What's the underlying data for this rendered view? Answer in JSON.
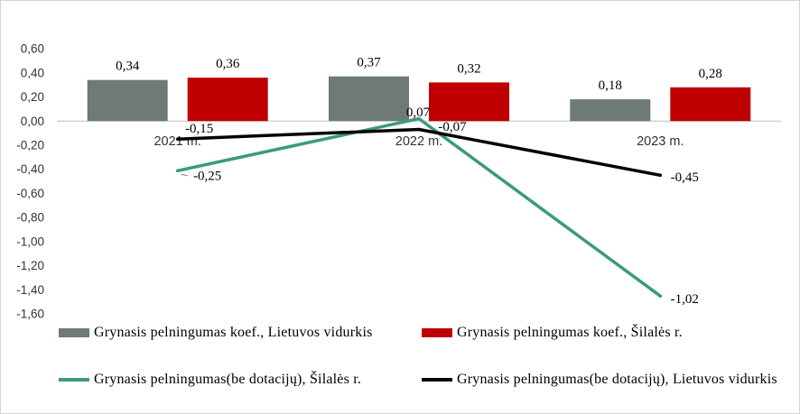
{
  "chart_data": {
    "type": "bar",
    "categories": [
      "2021 m.",
      "2022 m.",
      "2023 m."
    ],
    "ylim": [
      -1.6,
      0.6
    ],
    "ytick_labels": [
      "0,60",
      "0,40",
      "0,20",
      "0,00",
      "-0,20",
      "-0,40",
      "-0,60",
      "-0,80",
      "-1,00",
      "-1,20",
      "-1,40",
      "-1,60"
    ],
    "y2lim": [
      -1.13,
      0.5
    ],
    "grid": false,
    "legend": "bottom",
    "series": [
      {
        "name": "Grynasis pelningumas koef., Lietuvos vidurkis",
        "type": "bar",
        "color": "#6e7a74",
        "values": [
          0.34,
          0.37,
          0.18
        ],
        "labels": [
          "0,34",
          "0,37",
          "0,18"
        ]
      },
      {
        "name": "Grynasis pelningumas koef., Šilalės r.",
        "type": "bar",
        "color": "#c00000",
        "values": [
          0.36,
          0.32,
          0.28
        ],
        "labels": [
          "0,36",
          "0,32",
          "0,28"
        ]
      },
      {
        "name": "Grynasis pelningumas(be dotacijų), Šilalės r.",
        "type": "line",
        "axis": "secondary",
        "color": "#3b9b78",
        "values": [
          -0.25,
          0.07,
          -1.02
        ],
        "labels": [
          "-0,25",
          "0,07",
          "-1,02"
        ]
      },
      {
        "name": "Grynasis pelningumas(be dotacijų), Lietuvos vidurkis",
        "type": "line",
        "color": "#000000",
        "values": [
          -0.15,
          -0.07,
          -0.45
        ],
        "labels": [
          "-0,15",
          "-0,07",
          "-0,45"
        ]
      }
    ]
  }
}
